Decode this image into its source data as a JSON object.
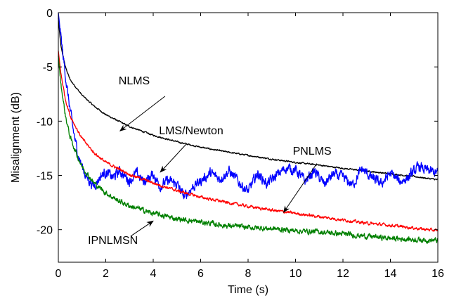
{
  "chart_data": {
    "type": "line",
    "xlabel": "Time (s)",
    "ylabel": "Misalignment (dB)",
    "xlim": [
      0,
      16
    ],
    "ylim": [
      -23,
      0
    ],
    "xticks": [
      0,
      2,
      4,
      6,
      8,
      10,
      12,
      14,
      16
    ],
    "yticks": [
      0,
      -5,
      -10,
      -15,
      -20
    ],
    "grid": false,
    "series": [
      {
        "name": "NLMS",
        "color": "#000000",
        "noise": 0.05,
        "x": [
          0,
          0.1,
          0.3,
          0.5,
          1,
          1.5,
          2,
          3,
          4,
          5,
          6,
          7,
          8,
          9,
          10,
          11,
          12,
          13,
          14,
          15,
          16
        ],
        "y": [
          -0.5,
          -3,
          -5,
          -6.2,
          -7.6,
          -8.6,
          -9.4,
          -10.5,
          -11.3,
          -11.9,
          -12.4,
          -12.8,
          -13.15,
          -13.5,
          -13.8,
          -14.05,
          -14.35,
          -14.6,
          -14.85,
          -15.1,
          -15.4
        ]
      },
      {
        "name": "LMS/Newton",
        "color": "#0000ff",
        "noise": 0.35,
        "x": [
          0,
          0.2,
          0.4,
          0.6,
          0.8,
          1.0,
          1.2,
          1.5,
          1.8,
          2.0,
          2.3,
          2.6,
          3.0,
          3.3,
          3.6,
          4.0,
          4.3,
          4.6,
          5.0,
          5.3,
          5.6,
          6.0,
          6.4,
          6.8,
          7.2,
          7.6,
          8.0,
          8.4,
          8.8,
          9.2,
          9.6,
          10.0,
          10.4,
          10.8,
          11.2,
          11.6,
          12.0,
          12.4,
          12.8,
          13.2,
          13.6,
          14.0,
          14.4,
          14.8,
          15.2,
          15.6,
          16.0
        ],
        "y": [
          0,
          -4,
          -7.5,
          -10.5,
          -12.8,
          -14.2,
          -15.2,
          -16,
          -15,
          -14.7,
          -15.2,
          -14.6,
          -15.5,
          -14.8,
          -15.6,
          -14.9,
          -16,
          -15.5,
          -15.8,
          -17,
          -16.2,
          -15.5,
          -14.8,
          -15.3,
          -14.6,
          -15.6,
          -16.5,
          -14.8,
          -15.8,
          -15.0,
          -14.3,
          -14.5,
          -15.5,
          -14.6,
          -15.8,
          -14.9,
          -15.2,
          -15.9,
          -14.4,
          -15.2,
          -15.8,
          -14.8,
          -15.6,
          -15.1,
          -14.2,
          -14.6,
          -14.8
        ]
      },
      {
        "name": "PNLMS",
        "color": "#ff0000",
        "noise": 0.1,
        "x": [
          0,
          0.1,
          0.3,
          0.5,
          0.8,
          1,
          1.5,
          2,
          3,
          4,
          5,
          6,
          7,
          8,
          9,
          10,
          11,
          12,
          13,
          14,
          15,
          16
        ],
        "y": [
          -3.5,
          -5.5,
          -8,
          -9.5,
          -10.8,
          -11.6,
          -12.9,
          -13.8,
          -14.9,
          -15.7,
          -16.4,
          -17,
          -17.45,
          -17.85,
          -18.2,
          -18.5,
          -18.8,
          -19.1,
          -19.4,
          -19.6,
          -19.85,
          -20.1
        ]
      },
      {
        "name": "IPNLMSN",
        "color": "#008000",
        "noise": 0.18,
        "x": [
          0,
          0.1,
          0.3,
          0.5,
          0.8,
          1,
          1.5,
          2,
          2.5,
          3,
          4,
          5,
          6,
          7,
          8,
          9,
          10,
          11,
          12,
          13,
          14,
          15,
          16
        ],
        "y": [
          -4,
          -6.5,
          -9.5,
          -11.5,
          -13.2,
          -14.2,
          -15.7,
          -16.6,
          -17.3,
          -17.8,
          -18.5,
          -19,
          -19.3,
          -19.6,
          -19.8,
          -19.9,
          -20.1,
          -20.2,
          -20.4,
          -20.6,
          -20.8,
          -20.9,
          -21
        ]
      }
    ],
    "annotations": [
      {
        "text": "NLMS",
        "tx": 3.2,
        "ty": -6.6,
        "ax1": 4.5,
        "ay1": -7.7,
        "ax2": 2.6,
        "ay2": -10.9
      },
      {
        "text": "LMS/Newton",
        "tx": 5.6,
        "ty": -11.2,
        "ax1": 5.4,
        "ay1": -12.1,
        "ax2": 4.3,
        "ay2": -14.7
      },
      {
        "text": "PNLMS",
        "tx": 10.7,
        "ty": -13.1,
        "ax1": 10.9,
        "ay1": -13.9,
        "ax2": 9.5,
        "ay2": -18.4
      },
      {
        "text": "IPNLMSN",
        "tx": 2.3,
        "ty": -21.3,
        "ax1": 3.05,
        "ay1": -20.6,
        "ax2": 4.0,
        "ay2": -19.2
      }
    ]
  }
}
